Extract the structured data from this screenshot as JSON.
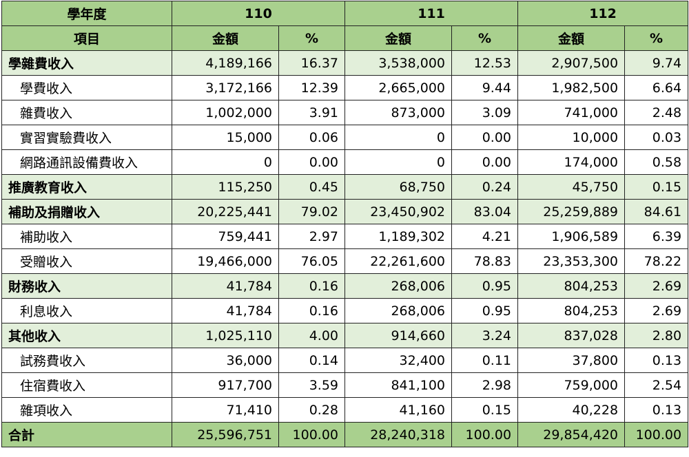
{
  "header": {
    "year_label": "學年度",
    "item_label": "項目",
    "amount_label": "金額",
    "pct_label": "%",
    "years": [
      "110",
      "111",
      "112"
    ]
  },
  "rows": [
    {
      "type": "cat",
      "label": "學雜費收入",
      "v": [
        "4,189,166",
        "16.37",
        "3,538,000",
        "12.53",
        "2,907,500",
        "9.74"
      ]
    },
    {
      "type": "sub",
      "label": "學費收入",
      "v": [
        "3,172,166",
        "12.39",
        "2,665,000",
        "9.44",
        "1,982,500",
        "6.64"
      ]
    },
    {
      "type": "sub",
      "label": "雜費收入",
      "v": [
        "1,002,000",
        "3.91",
        "873,000",
        "3.09",
        "741,000",
        "2.48"
      ]
    },
    {
      "type": "sub",
      "label": "實習實驗費收入",
      "v": [
        "15,000",
        "0.06",
        "0",
        "0.00",
        "10,000",
        "0.03"
      ]
    },
    {
      "type": "sub",
      "label": "網路通訊設備費收入",
      "v": [
        "0",
        "0.00",
        "0",
        "0.00",
        "174,000",
        "0.58"
      ]
    },
    {
      "type": "cat",
      "label": "推廣教育收入",
      "v": [
        "115,250",
        "0.45",
        "68,750",
        "0.24",
        "45,750",
        "0.15"
      ]
    },
    {
      "type": "cat",
      "label": "補助及捐贈收入",
      "v": [
        "20,225,441",
        "79.02",
        "23,450,902",
        "83.04",
        "25,259,889",
        "84.61"
      ]
    },
    {
      "type": "sub",
      "label": "補助收入",
      "v": [
        "759,441",
        "2.97",
        "1,189,302",
        "4.21",
        "1,906,589",
        "6.39"
      ]
    },
    {
      "type": "sub",
      "label": "受贈收入",
      "v": [
        "19,466,000",
        "76.05",
        "22,261,600",
        "78.83",
        "23,353,300",
        "78.22"
      ]
    },
    {
      "type": "cat",
      "label": "財務收入",
      "v": [
        "41,784",
        "0.16",
        "268,006",
        "0.95",
        "804,253",
        "2.69"
      ]
    },
    {
      "type": "sub",
      "label": "利息收入",
      "v": [
        "41,784",
        "0.16",
        "268,006",
        "0.95",
        "804,253",
        "2.69"
      ]
    },
    {
      "type": "cat",
      "label": "其他收入",
      "v": [
        "1,025,110",
        "4.00",
        "914,660",
        "3.24",
        "837,028",
        "2.80"
      ]
    },
    {
      "type": "sub",
      "label": "試務費收入",
      "v": [
        "36,000",
        "0.14",
        "32,400",
        "0.11",
        "37,800",
        "0.13"
      ]
    },
    {
      "type": "sub",
      "label": "住宿費收入",
      "v": [
        "917,700",
        "3.59",
        "841,100",
        "2.98",
        "759,000",
        "2.54"
      ]
    },
    {
      "type": "sub",
      "label": "雜項收入",
      "v": [
        "71,410",
        "0.28",
        "41,160",
        "0.15",
        "40,228",
        "0.13"
      ]
    },
    {
      "type": "total",
      "label": "合計",
      "v": [
        "25,596,751",
        "100.00",
        "28,240,318",
        "100.00",
        "29,854,420",
        "100.00"
      ]
    }
  ],
  "colors": {
    "header_green": "#a9d08e",
    "category_green": "#e2efda"
  }
}
